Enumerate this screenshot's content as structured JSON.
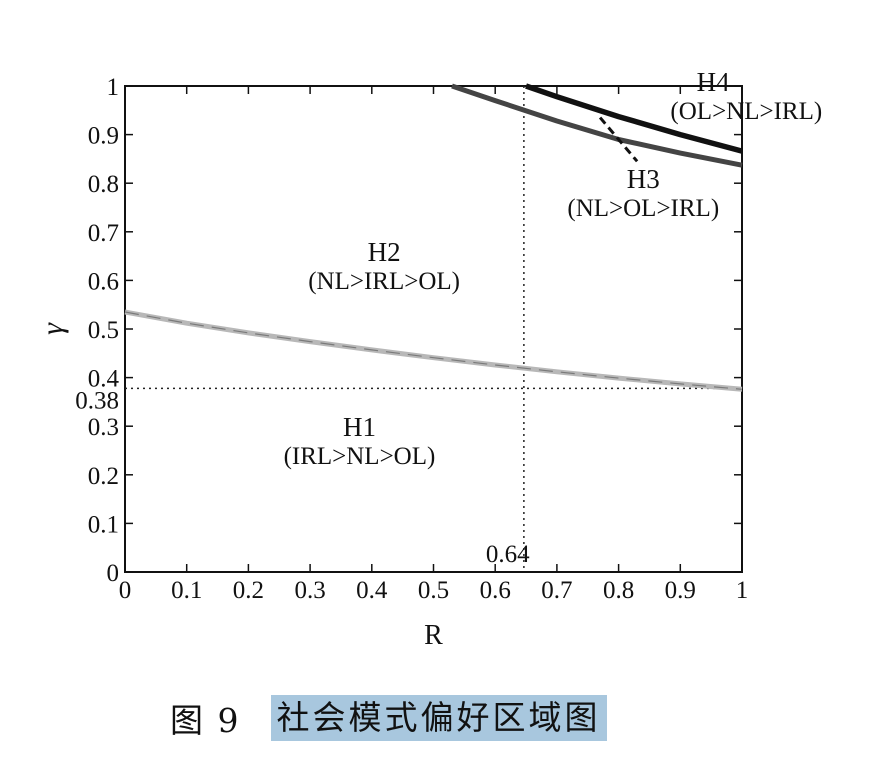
{
  "chart_data": {
    "type": "line",
    "xlabel": "R",
    "ylabel": "γ",
    "xlim": [
      0,
      1
    ],
    "ylim": [
      0,
      1
    ],
    "xticks": [
      "0",
      "0.1",
      "0.2",
      "0.3",
      "0.4",
      "0.5",
      "0.6",
      "0.7",
      "0.8",
      "0.9",
      "1"
    ],
    "yticks": [
      "0",
      "0.1",
      "0.2",
      "0.3",
      "0.4",
      "0.5",
      "0.6",
      "0.7",
      "0.8",
      "0.9",
      "1"
    ],
    "grid": false,
    "series": [
      {
        "color": "#b8b8b8",
        "x": [
          0,
          0.1,
          0.2,
          0.3,
          0.4,
          0.5,
          0.6,
          0.7,
          0.8,
          0.9,
          1.0
        ],
        "y": [
          0.535,
          0.512,
          0.492,
          0.474,
          0.457,
          0.441,
          0.426,
          0.412,
          0.399,
          0.387,
          0.376
        ]
      },
      {
        "color": "#444444",
        "x": [
          0.53,
          0.6,
          0.7,
          0.8,
          0.9,
          1.0
        ],
        "y": [
          1.0,
          0.97,
          0.928,
          0.89,
          0.862,
          0.837
        ]
      },
      {
        "color": "#111111",
        "x": [
          0.65,
          0.7,
          0.8,
          0.9,
          1.0
        ],
        "y": [
          1.0,
          0.978,
          0.937,
          0.9,
          0.866
        ]
      }
    ],
    "reference_lines": {
      "x": {
        "value": 0.64,
        "label": "0.64"
      },
      "y": {
        "value": 0.38,
        "label": "0.38"
      }
    },
    "regions": [
      {
        "name": "H1",
        "order": "(IRL>NL>OL)",
        "x": 0.38,
        "y": 0.28
      },
      {
        "name": "H2",
        "order": "(NL>IRL>OL)",
        "x": 0.42,
        "y": 0.64
      },
      {
        "name": "H3",
        "order": "(NL>OL>IRL)",
        "x": 0.84,
        "y": 0.79
      },
      {
        "name": "H4",
        "order": "(OL>NL>IRL)",
        "x": 0.97,
        "y": 0.99
      }
    ],
    "annotation_pointer": {
      "x": [
        0.77,
        0.83
      ],
      "y": [
        0.935,
        0.845
      ]
    }
  },
  "caption": {
    "number": "图 9",
    "title": "社会模式偏好区域图"
  }
}
